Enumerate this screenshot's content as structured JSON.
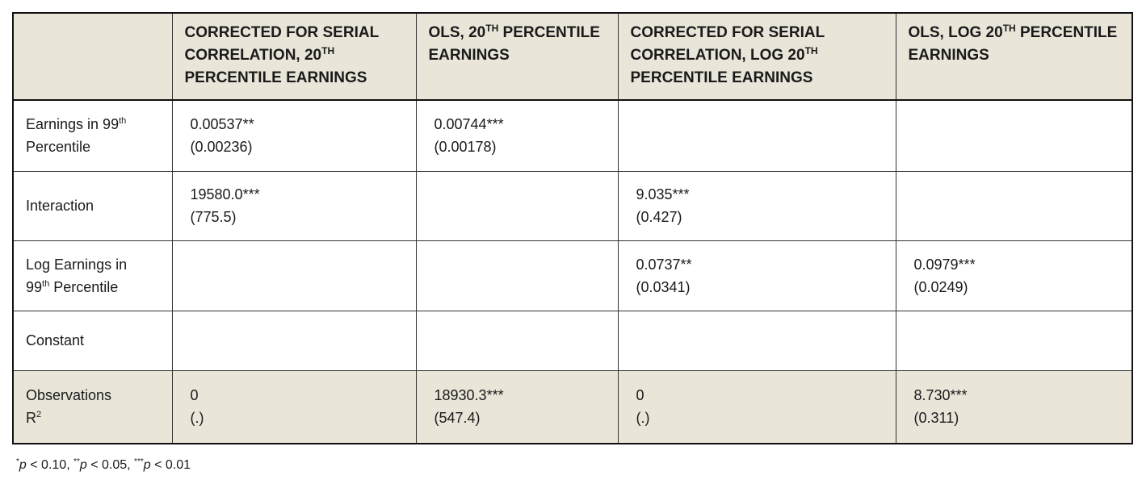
{
  "table": {
    "header": [
      null,
      [
        [
          {
            "text": "CORRECTED FOR SERIAL"
          }
        ],
        [
          {
            "text": "CORRELATION, 20"
          },
          {
            "text": "TH",
            "sup": true
          }
        ],
        [
          {
            "text": "PERCENTILE EARNINGS"
          }
        ]
      ],
      [
        [
          {
            "text": "OLS, 20"
          },
          {
            "text": "TH",
            "sup": true
          },
          {
            "text": " PERCENTILE"
          }
        ],
        [
          {
            "text": "EARNINGS"
          }
        ]
      ],
      [
        [
          {
            "text": "CORRECTED FOR SERIAL"
          }
        ],
        [
          {
            "text": "CORRELATION, LOG 20"
          },
          {
            "text": "TH",
            "sup": true
          }
        ],
        [
          {
            "text": "PERCENTILE EARNINGS"
          }
        ]
      ],
      [
        [
          {
            "text": "OLS, LOG 20"
          },
          {
            "text": "TH",
            "sup": true
          },
          {
            "text": " PERCENTILE"
          }
        ],
        [
          {
            "text": "EARNINGS"
          }
        ]
      ]
    ],
    "rows": [
      {
        "label": [
          [
            {
              "text": "Earnings in 99"
            },
            {
              "text": "th",
              "sup": true
            }
          ],
          [
            {
              "text": "Percentile"
            }
          ]
        ],
        "cells": [
          [
            "0.00537**",
            "(0.00236)"
          ],
          [
            "0.00744***",
            "(0.00178)"
          ],
          null,
          null
        ]
      },
      {
        "label": [
          [
            {
              "text": "Interaction"
            }
          ]
        ],
        "cells": [
          [
            "19580.0***",
            "(775.5)"
          ],
          null,
          [
            "9.035***",
            "(0.427)"
          ],
          null
        ]
      },
      {
        "label": [
          [
            {
              "text": "Log Earnings in"
            }
          ],
          [
            {
              "text": "99"
            },
            {
              "text": "th",
              "sup": true
            },
            {
              "text": " Percentile"
            }
          ]
        ],
        "cells": [
          null,
          null,
          [
            "0.0737**",
            "(0.0341)"
          ],
          [
            "0.0979***",
            "(0.0249)"
          ]
        ]
      },
      {
        "label": [
          [
            {
              "text": "Constant"
            }
          ]
        ],
        "cells": [
          null,
          null,
          null,
          null
        ]
      },
      {
        "label": [
          [
            {
              "text": "Observations"
            }
          ],
          [
            {
              "text": "R"
            },
            {
              "text": "2",
              "sup": true
            }
          ]
        ],
        "cells": [
          [
            "0",
            "(.)"
          ],
          [
            "18930.3***",
            "(547.4)"
          ],
          [
            "0",
            "(.)"
          ],
          [
            "8.730***",
            "(0.311)"
          ]
        ],
        "shaded": true
      }
    ]
  },
  "footnote": [
    {
      "text": "*",
      "sup": true
    },
    {
      "text": "p",
      "em": true
    },
    {
      "text": " < 0.10, "
    },
    {
      "text": "**",
      "sup": true
    },
    {
      "text": "p",
      "em": true
    },
    {
      "text": " < 0.05, "
    },
    {
      "text": "***",
      "sup": true
    },
    {
      "text": "p",
      "em": true
    },
    {
      "text": " < 0.01"
    }
  ]
}
